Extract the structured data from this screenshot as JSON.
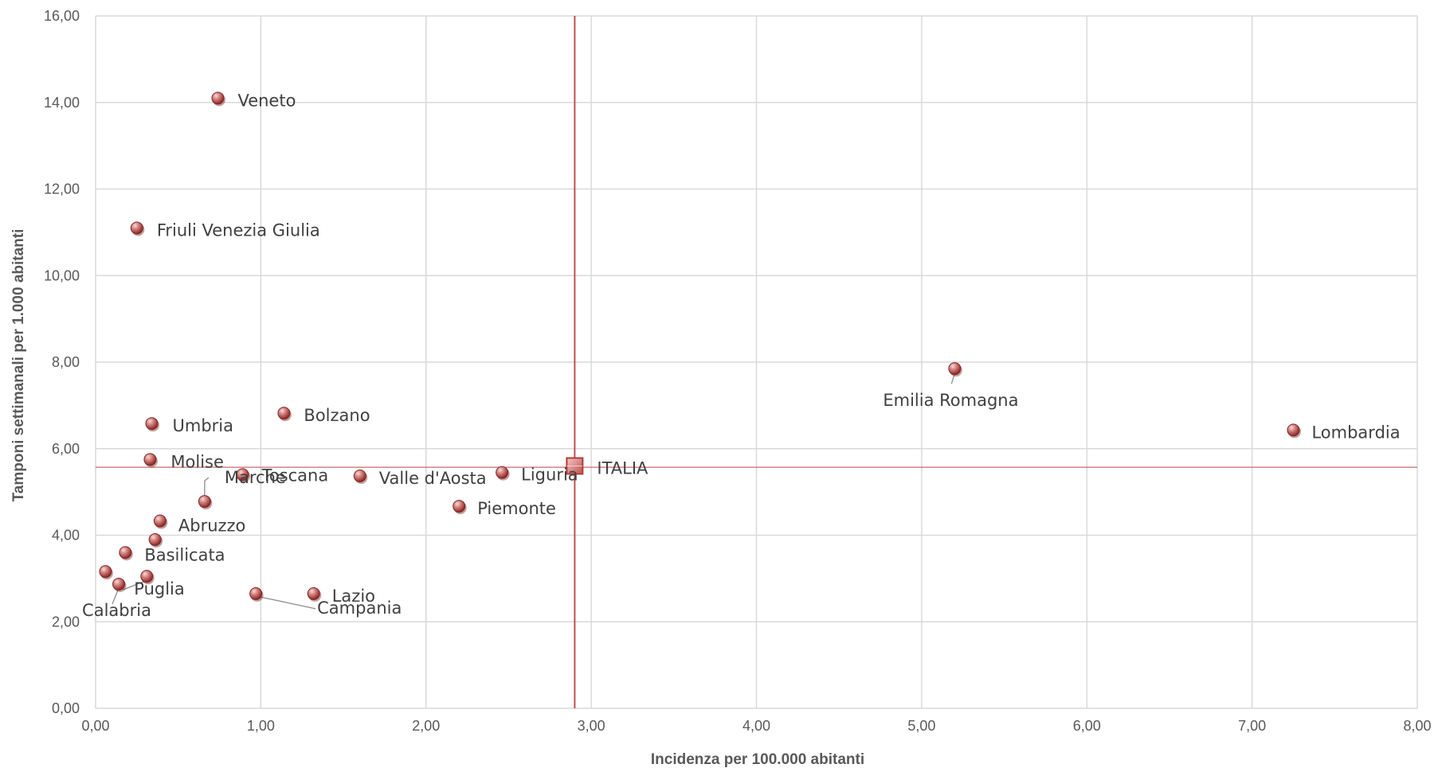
{
  "chart_data": {
    "type": "scatter",
    "xlabel": "Incidenza per 100.000 abitanti",
    "ylabel": "Tamponi settimanali per 1.000 abitanti",
    "xlim": [
      0,
      8
    ],
    "ylim": [
      0,
      16
    ],
    "x_ticks": [
      "0,00",
      "1,00",
      "2,00",
      "3,00",
      "4,00",
      "5,00",
      "6,00",
      "7,00",
      "8,00"
    ],
    "y_ticks": [
      "0,00",
      "2,00",
      "4,00",
      "6,00",
      "8,00",
      "10,00",
      "12,00",
      "14,00",
      "16,00"
    ],
    "grid": true,
    "point_color": "#c0504d",
    "reference_lines": {
      "x": 2.9,
      "y": 5.57,
      "color": "#c0504d"
    },
    "series": [
      {
        "points": [
          {
            "label": "Veneto",
            "x": 0.74,
            "y": 14.1
          },
          {
            "label": "Friuli Venezia Giulia",
            "x": 0.25,
            "y": 11.1
          },
          {
            "label": "Bolzano",
            "x": 1.14,
            "y": 6.82
          },
          {
            "label": "Umbria",
            "x": 0.34,
            "y": 6.58
          },
          {
            "label": "Molise",
            "x": 0.33,
            "y": 5.75
          },
          {
            "label": "Toscana",
            "x": 0.89,
            "y": 5.4
          },
          {
            "label": "Marche",
            "x": 0.66,
            "y": 4.78
          },
          {
            "label": "Valle d'Aosta",
            "x": 1.6,
            "y": 5.37
          },
          {
            "label": "Liguria",
            "x": 2.46,
            "y": 5.45
          },
          {
            "label": "Piemonte",
            "x": 2.2,
            "y": 4.67
          },
          {
            "label": "Abruzzo",
            "x": 0.39,
            "y": 4.33
          },
          {
            "label": "",
            "x": 0.36,
            "y": 3.9
          },
          {
            "label": "Basilicata",
            "x": 0.18,
            "y": 3.6
          },
          {
            "label": "Puglia",
            "x": 0.31,
            "y": 3.05
          },
          {
            "label": "",
            "x": 0.06,
            "y": 3.16
          },
          {
            "label": "Calabria",
            "x": 0.14,
            "y": 2.87
          },
          {
            "label": "Campania",
            "x": 0.97,
            "y": 2.65
          },
          {
            "label": "Lazio",
            "x": 1.32,
            "y": 2.65
          },
          {
            "label": "Emilia Romagna",
            "x": 5.2,
            "y": 7.85
          },
          {
            "label": "Lombardia",
            "x": 7.25,
            "y": 6.43
          }
        ]
      },
      {
        "points": [
          {
            "label": "ITALIA",
            "x": 2.9,
            "y": 5.6
          }
        ]
      }
    ]
  }
}
